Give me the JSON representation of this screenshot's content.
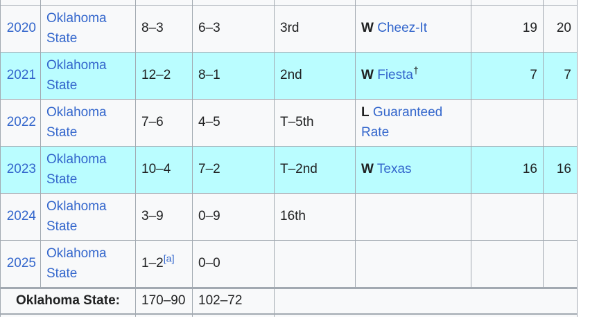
{
  "colors": {
    "highlight_row": "#BAFDFF",
    "normal_row": "#F8F9FA",
    "link": "#3366CC",
    "text": "#202122",
    "border": "#A2A9B1"
  },
  "table": {
    "rows": [
      {
        "year": "2020",
        "team": "Oklahoma State",
        "overall": "8–3",
        "overall_note": "",
        "conference": "6–3",
        "standing": "3rd",
        "bowl_result": "W",
        "bowl_name": "Cheez-It",
        "bowl_suffix": "",
        "ranking1": "19",
        "ranking2": "20",
        "highlight": false
      },
      {
        "year": "2021",
        "team": "Oklahoma State",
        "overall": "12–2",
        "overall_note": "",
        "conference": "8–1",
        "standing": "2nd",
        "bowl_result": "W",
        "bowl_name": "Fiesta",
        "bowl_suffix": "†",
        "ranking1": "7",
        "ranking2": "7",
        "highlight": true
      },
      {
        "year": "2022",
        "team": "Oklahoma State",
        "overall": "7–6",
        "overall_note": "",
        "conference": "4–5",
        "standing": "T–5th",
        "bowl_result": "L",
        "bowl_name": "Guaranteed Rate",
        "bowl_suffix": "",
        "ranking1": "",
        "ranking2": "",
        "highlight": false
      },
      {
        "year": "2023",
        "team": "Oklahoma State",
        "overall": "10–4",
        "overall_note": "",
        "conference": "7–2",
        "standing": "T–2nd",
        "bowl_result": "W",
        "bowl_name": "Texas",
        "bowl_suffix": "",
        "ranking1": "16",
        "ranking2": "16",
        "highlight": true
      },
      {
        "year": "2024",
        "team": "Oklahoma State",
        "overall": "3–9",
        "overall_note": "",
        "conference": "0–9",
        "standing": "16th",
        "bowl_result": "",
        "bowl_name": "",
        "bowl_suffix": "",
        "ranking1": "",
        "ranking2": "",
        "highlight": false
      },
      {
        "year": "2025",
        "team": "Oklahoma State",
        "overall": "1–2",
        "overall_note": "[a]",
        "conference": "0–0",
        "standing": "",
        "bowl_result": "",
        "bowl_name": "",
        "bowl_suffix": "",
        "ranking1": "",
        "ranking2": "",
        "highlight": false
      }
    ],
    "footer": {
      "label": "Oklahoma State:",
      "overall": "170–90",
      "conference": "102–72"
    }
  }
}
